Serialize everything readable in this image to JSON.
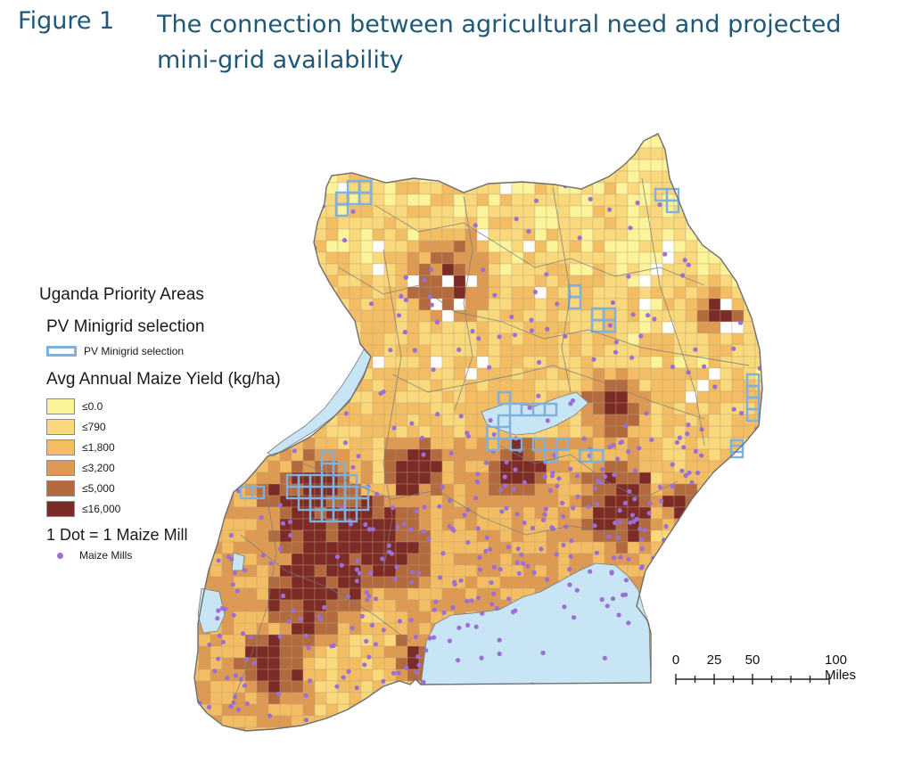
{
  "figure": {
    "label": "Figure 1",
    "title": "The connection between agricultural need and projected mini-grid availability"
  },
  "legend": {
    "heading": "Uganda Priority Areas",
    "pv_heading": "PV Minigrid selection",
    "pv_item": "PV Minigrid selection",
    "yield_heading": "Avg Annual Maize Yield (kg/ha)",
    "classes": [
      {
        "label": "≤0.0",
        "color": "#fbf49b"
      },
      {
        "label": "≤790",
        "color": "#f9d97c"
      },
      {
        "label": "≤1,800",
        "color": "#f3be63"
      },
      {
        "label": "≤3,200",
        "color": "#de9a52"
      },
      {
        "label": "≤5,000",
        "color": "#b26a3e"
      },
      {
        "label": "≤16,000",
        "color": "#7d2b26"
      }
    ],
    "mill_heading": "1 Dot = 1 Maize Mill",
    "mill_item": "Maize Mills",
    "mill_color": "#9b6fd6",
    "pv_color": "#7fb1dc"
  },
  "scale": {
    "labels": [
      "0",
      "25",
      "50",
      "100 Miles"
    ],
    "values": [
      0,
      25,
      50,
      100
    ]
  },
  "colors": {
    "water": "#c7e5f4",
    "boundary": "#7b7b7b"
  }
}
